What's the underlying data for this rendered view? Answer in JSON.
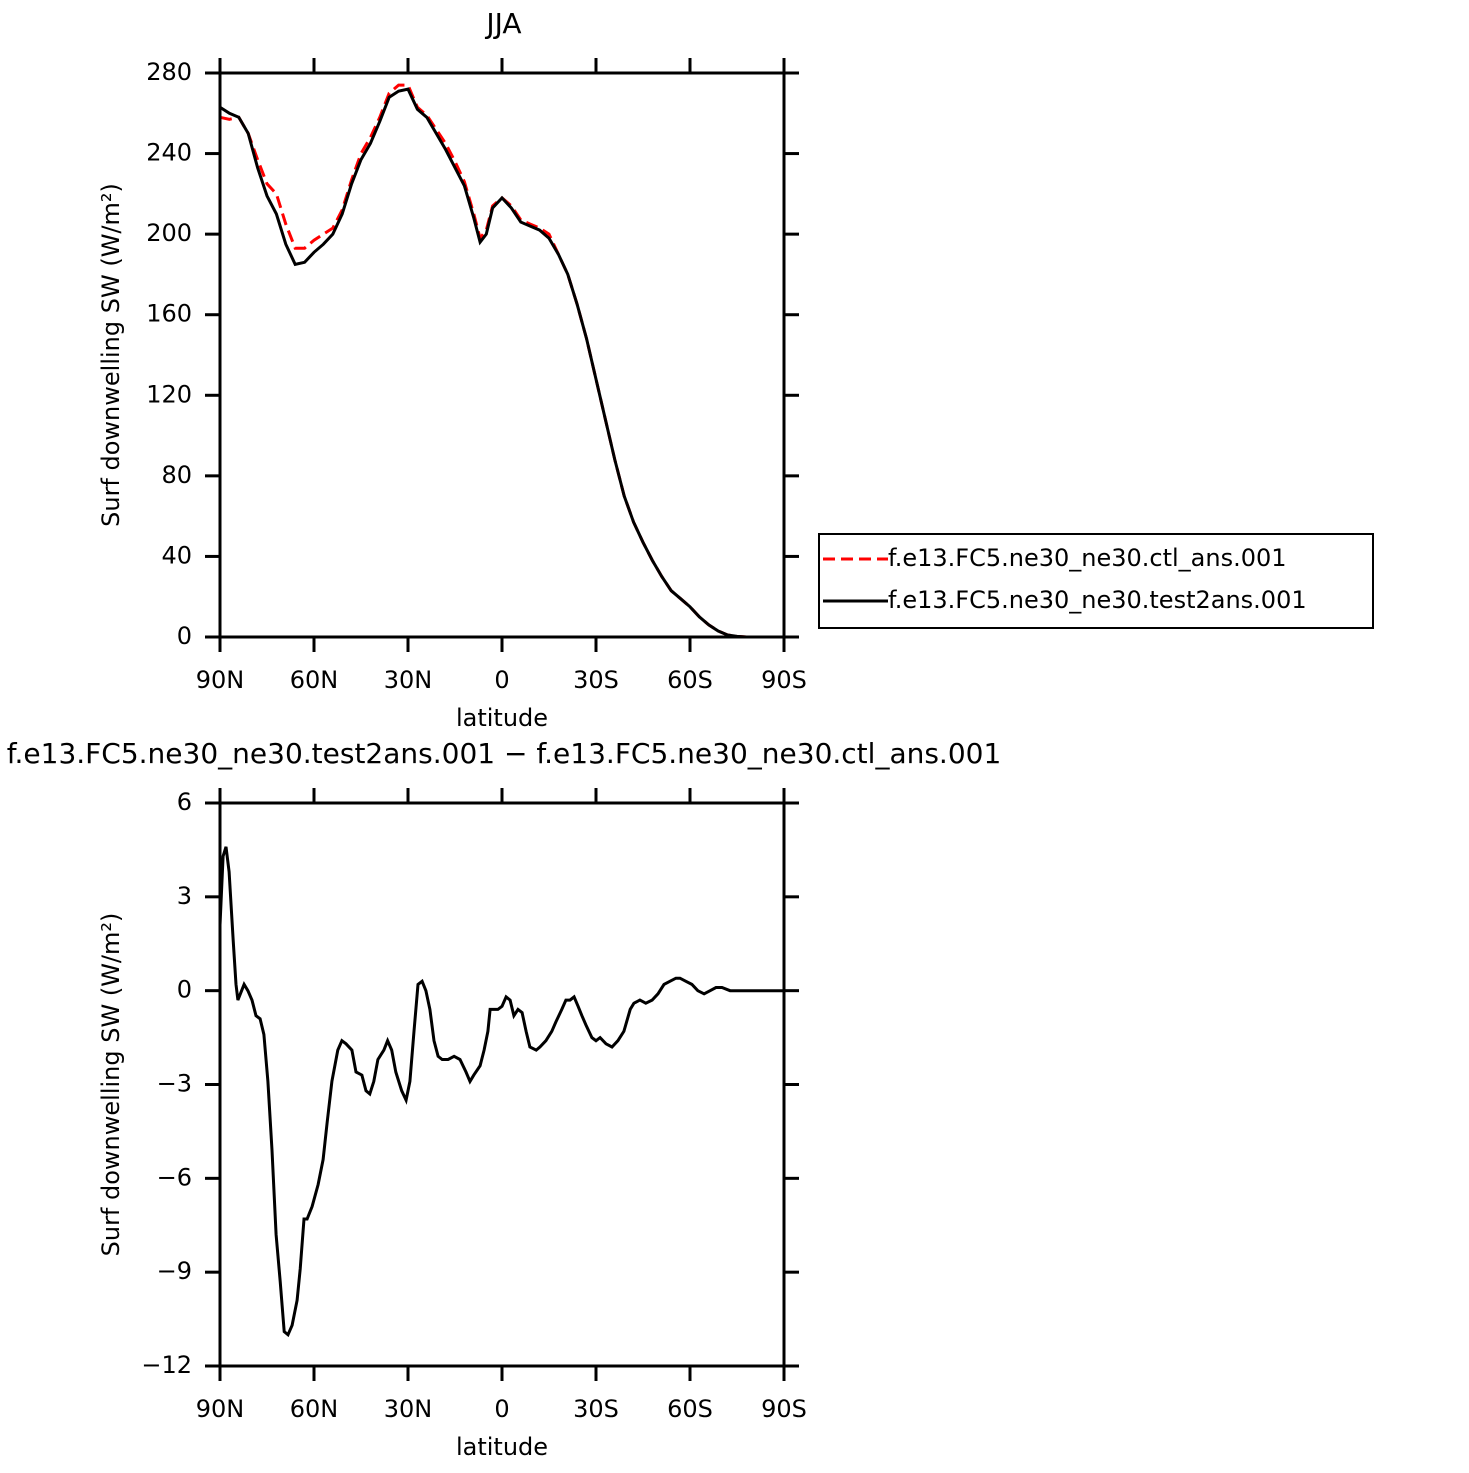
{
  "chart_data": [
    {
      "type": "line",
      "title": "JJA",
      "xlabel": "latitude",
      "ylabel": "Surf downwelling SW (W/m²)",
      "x": [
        90,
        87,
        84,
        81,
        78,
        75,
        72,
        69,
        66,
        63,
        60,
        57,
        54,
        51,
        48,
        45,
        42,
        39,
        36,
        33,
        30,
        27,
        24,
        21,
        18,
        15,
        12,
        9,
        7,
        5,
        3,
        0,
        -3,
        -6,
        -9,
        -12,
        -15,
        -18,
        -21,
        -24,
        -27,
        -30,
        -33,
        -36,
        -39,
        -42,
        -45,
        -48,
        -51,
        -54,
        -57,
        -60,
        -63,
        -66,
        -69,
        -72,
        -75,
        -78,
        -81
      ],
      "series": [
        {
          "name": "f.e13.FC5.ne30_ne30.ctl_ans.001",
          "color": "#ff0000",
          "linestyle": "dashed",
          "values": [
            258,
            257,
            258,
            250,
            237,
            225,
            220,
            205,
            193,
            193,
            197,
            200,
            203,
            212,
            227,
            240,
            248,
            258,
            270,
            274,
            274,
            263,
            259,
            252,
            245,
            236,
            226,
            210,
            198,
            202,
            214,
            218,
            214,
            207,
            205,
            203,
            200,
            190,
            180,
            165,
            148,
            128,
            108,
            88,
            70,
            57,
            47,
            38,
            30,
            23,
            19,
            15,
            10,
            6,
            3,
            1,
            0.3,
            0,
            0
          ]
        },
        {
          "name": "f.e13.FC5.ne30_ne30.test2ans.001",
          "color": "#000000",
          "linestyle": "solid",
          "values": [
            263,
            260,
            258,
            250,
            233,
            219,
            210,
            195,
            185,
            186,
            191,
            195,
            200,
            210,
            225,
            237,
            245,
            256,
            268,
            271,
            272,
            262,
            258,
            250,
            242,
            233,
            224,
            208,
            196,
            200,
            213,
            218,
            213,
            206,
            204,
            202,
            198,
            190,
            180,
            165,
            148,
            128,
            108,
            88,
            70,
            57,
            47,
            38,
            30,
            23,
            19,
            15,
            10,
            6,
            3,
            1,
            0.3,
            0,
            0
          ]
        }
      ],
      "xlim": [
        90,
        -90
      ],
      "xticks": [
        {
          "value": 90,
          "label": "90N"
        },
        {
          "value": 60,
          "label": "60N"
        },
        {
          "value": 30,
          "label": "30N"
        },
        0,
        {
          "value": -30,
          "label": "30S"
        },
        {
          "value": -60,
          "label": "60S"
        },
        {
          "value": -90,
          "label": "90S"
        }
      ],
      "ylim": [
        0,
        280
      ],
      "yticks": [
        0,
        40,
        80,
        120,
        160,
        200,
        240,
        280
      ],
      "legend": "right"
    },
    {
      "type": "line",
      "title": "f.e13.FC5.ne30_ne30.test2ans.001 − f.e13.FC5.ne30_ne30.ctl_ans.001",
      "xlabel": "latitude",
      "ylabel": "Surf downwelling SW (W/m²)",
      "x": [
        90,
        89.0,
        88.1,
        87.1,
        85.8,
        84.9,
        84.3,
        82.3,
        81.1,
        79.8,
        78.5,
        77.2,
        76.0,
        74.7,
        73.4,
        72.1,
        70.8,
        69.5,
        68.3,
        67.0,
        65.4,
        64.4,
        63.2,
        62.2,
        60.6,
        58.7,
        57.1,
        55.8,
        54.3,
        52.4,
        51.1,
        49.8,
        47.9,
        46.6,
        44.7,
        43.4,
        42.2,
        40.9,
        39.6,
        37.7,
        36.5,
        35.2,
        33.9,
        32.0,
        30.6,
        29.4,
        28.1,
        26.8,
        25.5,
        24.3,
        23.0,
        21.7,
        20.4,
        19.1,
        17.2,
        15.3,
        13.4,
        11.5,
        10.2,
        9.0,
        7.0,
        5.7,
        4.5,
        3.8,
        2.6,
        1.3,
        0,
        -1.3,
        -2.6,
        -3.8,
        -5.1,
        -6.4,
        -7.7,
        -8.9,
        -10.9,
        -12.1,
        -14.0,
        -15.9,
        -17.2,
        -19.1,
        -20.4,
        -21.7,
        -23.0,
        -24.3,
        -25.5,
        -26.8,
        -28.7,
        -30.0,
        -31.3,
        -33.2,
        -35.1,
        -37.0,
        -38.9,
        -40.9,
        -42.1,
        -44.0,
        -45.9,
        -47.9,
        -49.8,
        -51.7,
        -53.6,
        -55.5,
        -56.8,
        -58.7,
        -60.6,
        -62.5,
        -64.5,
        -66.4,
        -68.3,
        -70.2,
        -72.8,
        -76.0,
        -90
      ],
      "series": [
        {
          "color": "#000000",
          "linestyle": "solid",
          "values": [
            2.1,
            4.3,
            4.6,
            3.8,
            1.6,
            0.2,
            -0.3,
            0.2,
            0,
            -0.3,
            -0.8,
            -0.9,
            -1.4,
            -2.9,
            -5.1,
            -7.8,
            -9.3,
            -10.9,
            -11.0,
            -10.7,
            -9.9,
            -8.9,
            -7.3,
            -7.3,
            -6.9,
            -6.2,
            -5.4,
            -4.2,
            -2.9,
            -1.9,
            -1.6,
            -1.7,
            -1.9,
            -2.6,
            -2.7,
            -3.2,
            -3.3,
            -2.9,
            -2.2,
            -1.9,
            -1.6,
            -1.9,
            -2.6,
            -3.2,
            -3.5,
            -2.9,
            -1.3,
            0.2,
            0.3,
            0,
            -0.6,
            -1.6,
            -2.1,
            -2.2,
            -2.2,
            -2.1,
            -2.2,
            -2.6,
            -2.9,
            -2.7,
            -2.4,
            -1.9,
            -1.3,
            -0.6,
            -0.6,
            -0.6,
            -0.5,
            -0.2,
            -0.3,
            -0.8,
            -0.6,
            -0.7,
            -1.3,
            -1.8,
            -1.9,
            -1.8,
            -1.6,
            -1.3,
            -1.0,
            -0.6,
            -0.3,
            -0.3,
            -0.2,
            -0.5,
            -0.8,
            -1.1,
            -1.5,
            -1.6,
            -1.5,
            -1.7,
            -1.8,
            -1.6,
            -1.3,
            -0.6,
            -0.4,
            -0.3,
            -0.4,
            -0.3,
            -0.1,
            0.2,
            0.3,
            0.4,
            0.4,
            0.3,
            0.2,
            0,
            -0.1,
            0,
            0.1,
            0.1,
            0,
            0,
            0
          ]
        }
      ],
      "xlim": [
        90,
        -90
      ],
      "xticks": [
        {
          "value": 90,
          "label": "90N"
        },
        {
          "value": 60,
          "label": "60N"
        },
        {
          "value": 30,
          "label": "30N"
        },
        0,
        {
          "value": -30,
          "label": "30S"
        },
        {
          "value": -60,
          "label": "60S"
        },
        {
          "value": -90,
          "label": "90S"
        }
      ],
      "ylim": [
        -12,
        6
      ],
      "yticks": [
        {
          "value": -12,
          "label": "−12"
        },
        {
          "value": -9,
          "label": "−9"
        },
        {
          "value": -6,
          "label": "−6"
        },
        {
          "value": -3,
          "label": "−3"
        },
        0,
        3,
        6
      ]
    }
  ]
}
